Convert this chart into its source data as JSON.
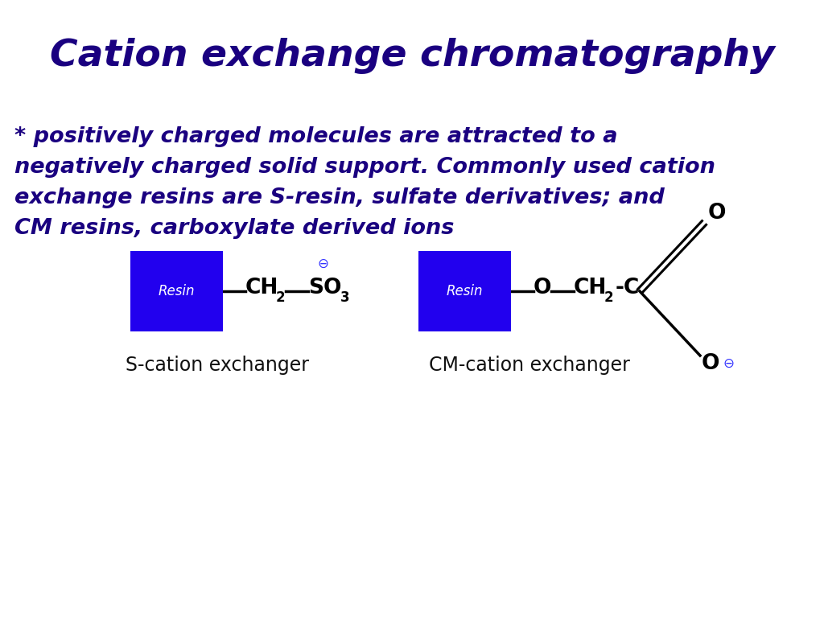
{
  "title": "Cation exchange chromatography",
  "title_color": "#1a0080",
  "title_fontsize": 34,
  "body_lines": [
    "* positively charged molecules are attracted to a",
    "negatively charged solid support. Commonly used cation",
    "exchange resins are S-resin, sulfate derivatives; and",
    "CM resins, carboxylate derived ions"
  ],
  "body_color": "#1a0080",
  "body_fontsize": 19.5,
  "bg_color": "#ffffff",
  "resin_color": "#2200ee",
  "resin_text_color": "#ffffff",
  "resin_text": "Resin",
  "label1": "S-cation exchanger",
  "label2": "CM-cation exchanger",
  "label_color": "#111111",
  "label_fontsize": 17,
  "minus_color": "#3333ff",
  "chem_color": "#000000",
  "chem_fontsize": 19,
  "sub_fontsize": 12
}
